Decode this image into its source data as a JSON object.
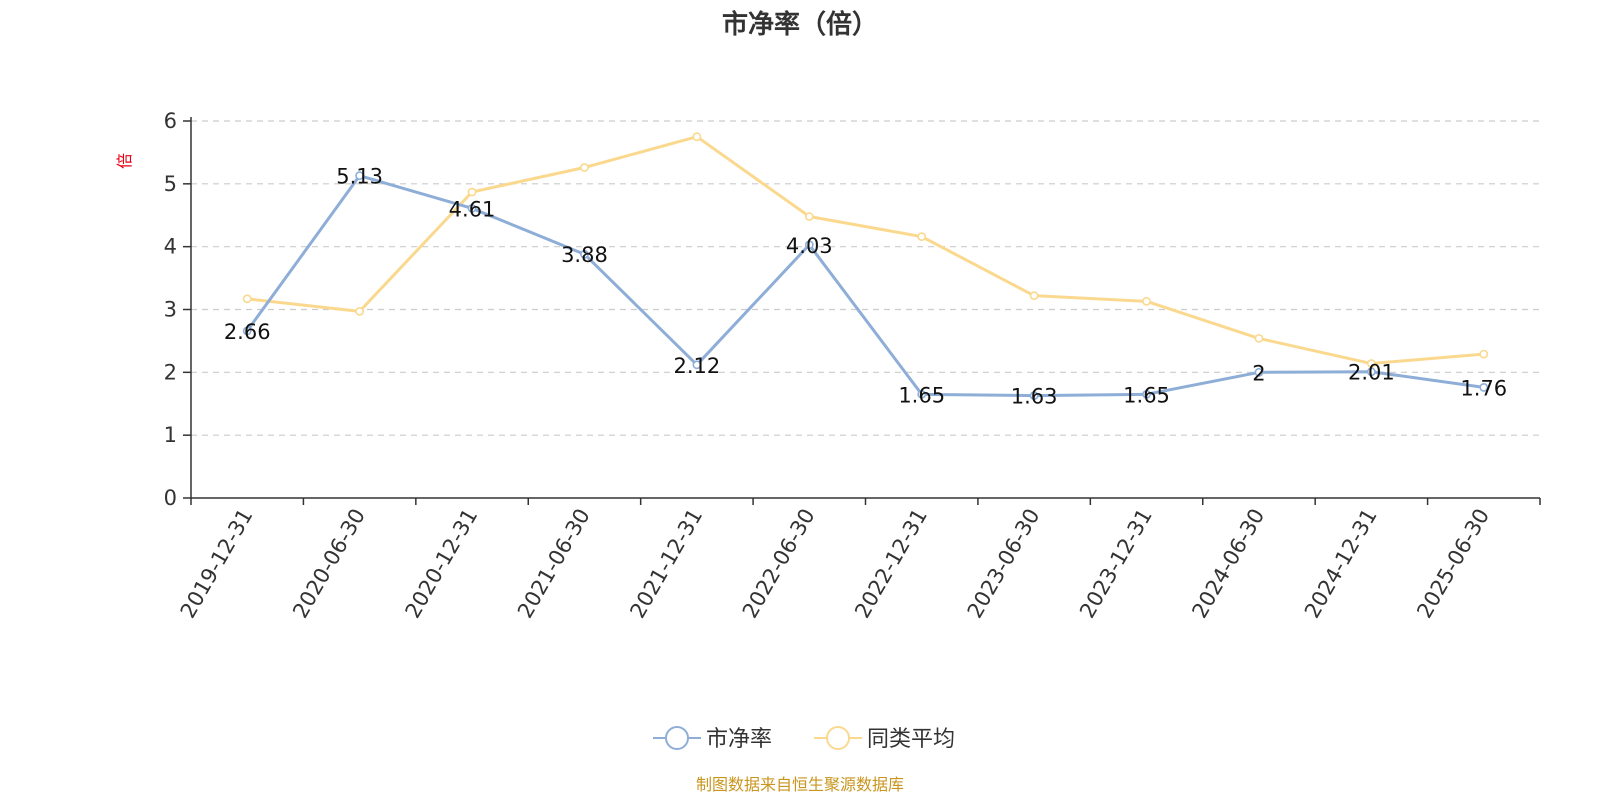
{
  "chart_data": {
    "type": "line",
    "title": "市净率（倍）",
    "ylabel": "倍",
    "xlabel": "",
    "categories": [
      "2019-12-31",
      "2020-06-30",
      "2020-12-31",
      "2021-06-30",
      "2021-12-31",
      "2022-06-30",
      "2022-12-31",
      "2023-06-30",
      "2023-12-31",
      "2024-06-30",
      "2024-12-31",
      "2025-06-30"
    ],
    "ylim": [
      0,
      6
    ],
    "yticks": [
      "0",
      "1",
      "2",
      "3",
      "4",
      "5",
      "6"
    ],
    "grid": true,
    "legend_position": "bottom",
    "series": [
      {
        "name": "市净率",
        "color": "#8eaed8",
        "values": [
          2.66,
          5.13,
          4.61,
          3.88,
          2.12,
          4.03,
          1.65,
          1.63,
          1.65,
          2,
          2.01,
          1.76
        ],
        "labels": [
          "2.66",
          "5.13",
          "4.61",
          "3.88",
          "2.12",
          "4.03",
          "1.65",
          "1.63",
          "1.65",
          "2",
          "2.01",
          "1.76"
        ]
      },
      {
        "name": "同类平均",
        "color": "#fad98f",
        "values": [
          3.17,
          2.97,
          4.87,
          5.26,
          5.75,
          4.48,
          4.16,
          3.22,
          3.13,
          2.54,
          2.14,
          2.29
        ]
      }
    ]
  },
  "source": "制图数据来自恒生聚源数据库"
}
